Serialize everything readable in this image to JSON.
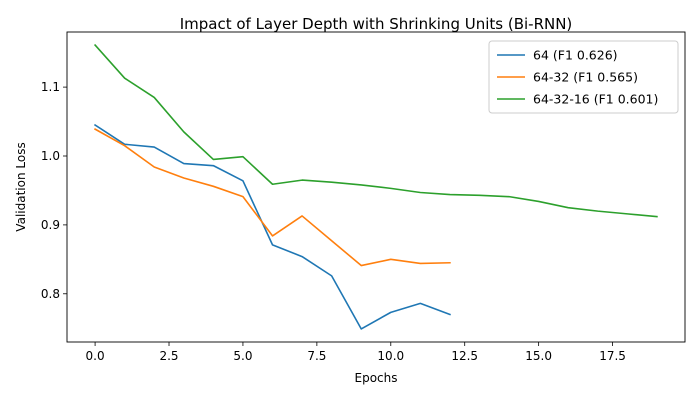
{
  "chart_data": {
    "type": "line",
    "title": "Impact of Layer Depth with Shrinking Units (Bi-RNN)",
    "xlabel": "Epochs",
    "ylabel": "Validation Loss",
    "xlim": [
      -0.95,
      19.95
    ],
    "ylim": [
      0.73,
      1.18
    ],
    "xticks": [
      0,
      2.5,
      5,
      7.5,
      10,
      12.5,
      15,
      17.5
    ],
    "xtick_labels": [
      "0.0",
      "2.5",
      "5.0",
      "7.5",
      "10.0",
      "12.5",
      "15.0",
      "17.5"
    ],
    "yticks": [
      0.8,
      0.9,
      1.0,
      1.1
    ],
    "ytick_labels": [
      "0.8",
      "0.9",
      "1.0",
      "1.1"
    ],
    "grid": false,
    "legend_position": "top-right",
    "series": [
      {
        "name": "64 (F1 0.626)",
        "color": "#1f77b4",
        "x": [
          0,
          1,
          2,
          3,
          4,
          5,
          6,
          7,
          8,
          9,
          10,
          11,
          12
        ],
        "y": [
          1.045,
          1.017,
          1.013,
          0.989,
          0.986,
          0.964,
          0.871,
          0.854,
          0.826,
          0.749,
          0.773,
          0.786,
          0.77
        ]
      },
      {
        "name": "64-32 (F1 0.565)",
        "color": "#ff7f0e",
        "x": [
          0,
          1,
          2,
          3,
          4,
          5,
          6,
          7,
          8,
          9,
          10,
          11,
          12
        ],
        "y": [
          1.039,
          1.015,
          0.984,
          0.968,
          0.956,
          0.941,
          0.884,
          0.913,
          0.877,
          0.841,
          0.85,
          0.844,
          0.845
        ]
      },
      {
        "name": "64-32-16 (F1 0.601)",
        "color": "#2ca02c",
        "x": [
          0,
          1,
          2,
          3,
          4,
          5,
          6,
          7,
          8,
          9,
          10,
          11,
          12,
          13,
          14,
          15,
          16,
          17,
          18,
          19
        ],
        "y": [
          1.161,
          1.113,
          1.085,
          1.035,
          0.995,
          0.999,
          0.959,
          0.965,
          0.962,
          0.958,
          0.953,
          0.947,
          0.944,
          0.943,
          0.941,
          0.934,
          0.925,
          0.92,
          0.916,
          0.912
        ]
      }
    ]
  }
}
